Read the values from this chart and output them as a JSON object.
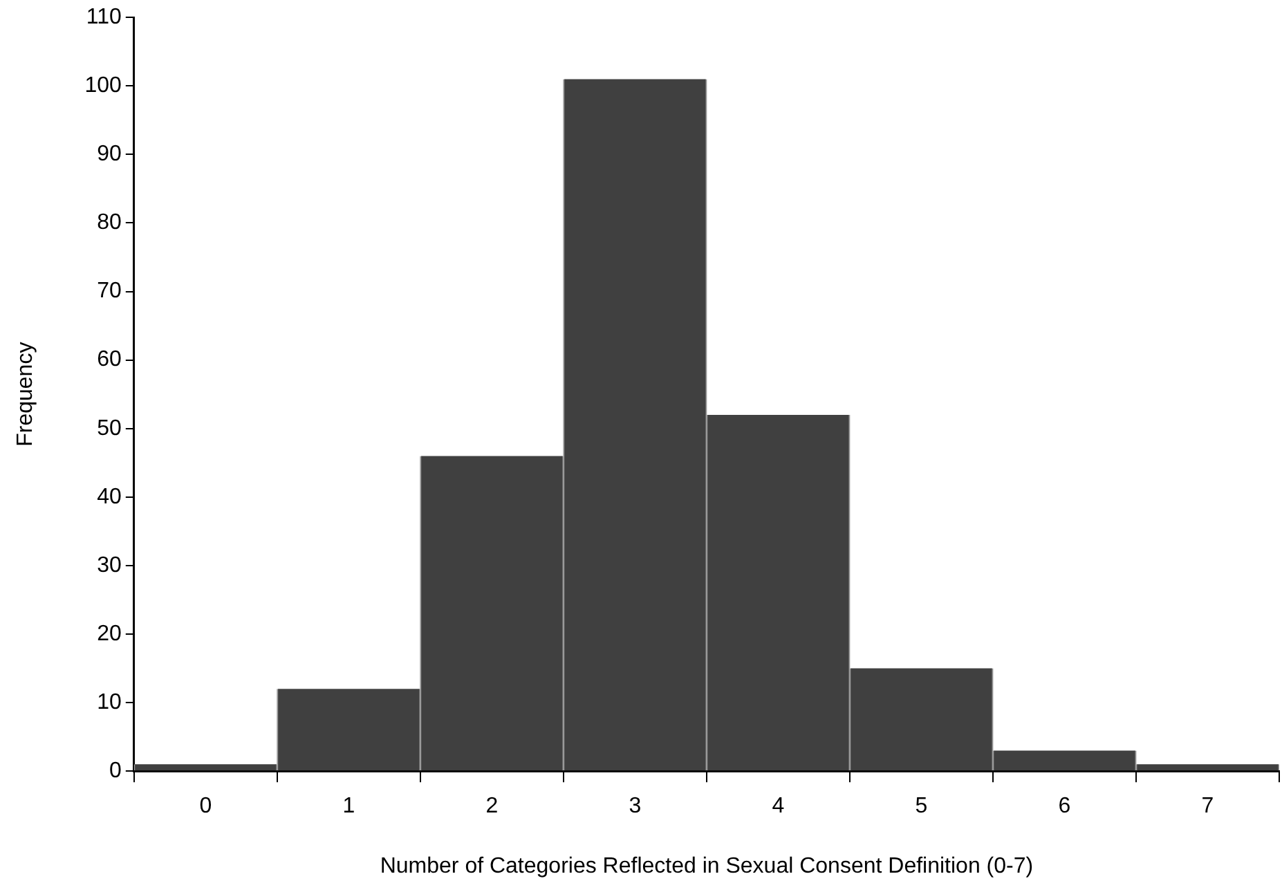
{
  "chart_data": {
    "type": "bar",
    "xlabel": "Number of Categories Reflected in Sexual Consent Definition (0-7)",
    "ylabel": "Frequency",
    "categories": [
      "0",
      "1",
      "2",
      "3",
      "4",
      "5",
      "6",
      "7"
    ],
    "values": [
      1,
      12,
      46,
      101,
      52,
      15,
      3,
      1
    ],
    "color": "#404040",
    "ylim": [
      0,
      110
    ],
    "yticks": [
      0,
      10,
      20,
      30,
      40,
      50,
      60,
      70,
      80,
      90,
      100,
      110
    ],
    "grid": false,
    "legend": false
  }
}
